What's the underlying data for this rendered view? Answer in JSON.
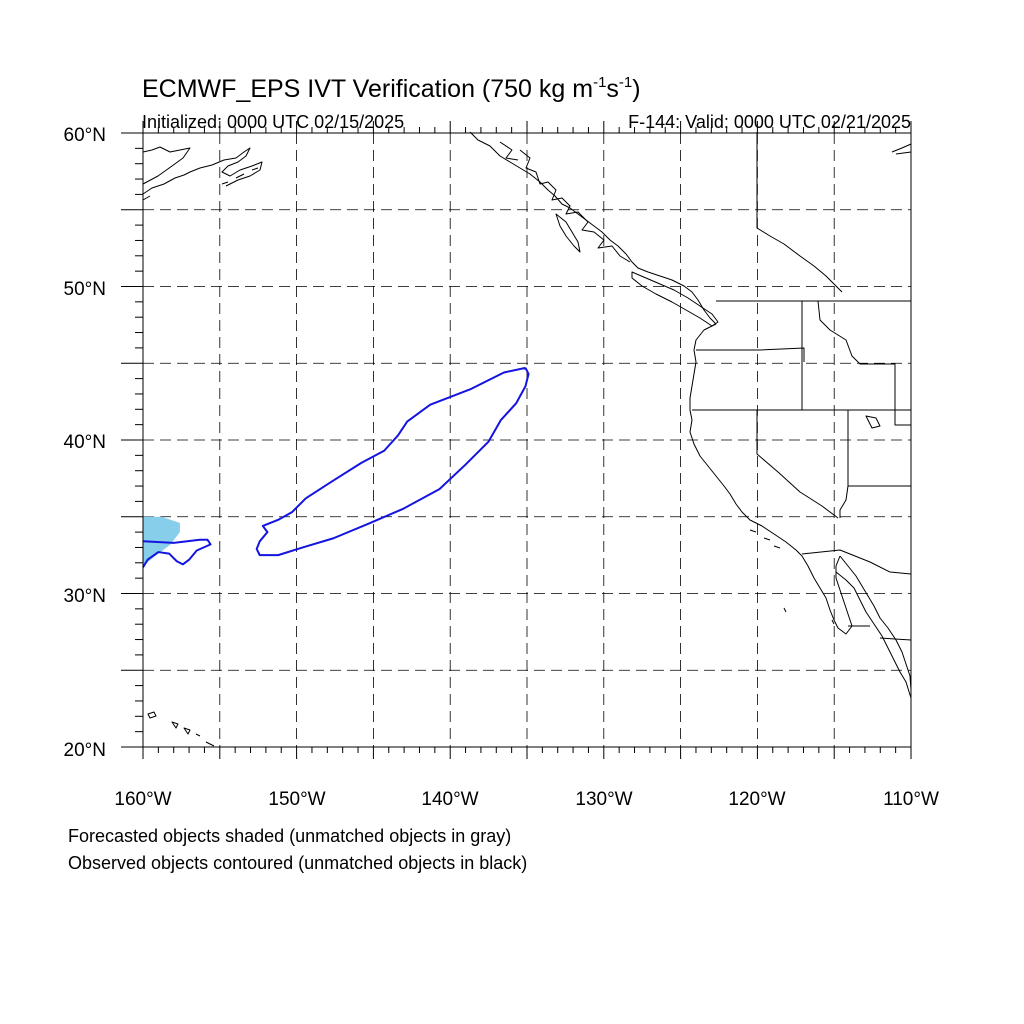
{
  "title": {
    "main_prefix": "ECMWF_EPS IVT Verification (750 kg m",
    "sup1": "-1",
    "mid": "s",
    "sup2": "-1",
    "suffix": ")"
  },
  "subtitle": {
    "left": "Initialized: 0000 UTC 02/15/2025",
    "right": "F-144: Valid: 0000 UTC 02/21/2025"
  },
  "axes": {
    "lon_labels": [
      "160°W",
      "150°W",
      "140°W",
      "130°W",
      "120°W",
      "110°W"
    ],
    "lat_labels": [
      "60°N",
      "50°N",
      "40°N",
      "30°N",
      "20°N"
    ],
    "lon_range": [
      -160,
      -110
    ],
    "lat_range": [
      20,
      60
    ],
    "grid_spacing_deg": 5,
    "grid": "dashed"
  },
  "footnotes": {
    "line1": "Forecasted objects shaded (unmatched objects in gray)",
    "line2": "Observed objects contoured (unmatched objects in black)"
  },
  "colors": {
    "forecast_fill": "#87ceeb",
    "observed_contour": "#1414e0",
    "land_lines": "#000000"
  },
  "map_data": {
    "forecast_objects": [
      {
        "name": "forecast-object-1",
        "color": "#87ceeb",
        "points": [
          [
            -160,
            35
          ],
          [
            -158.8,
            35
          ],
          [
            -157.6,
            34.6
          ],
          [
            -157.6,
            34
          ],
          [
            -158.2,
            33.2
          ],
          [
            -159,
            32.6
          ],
          [
            -160,
            31.8
          ]
        ]
      }
    ],
    "observed_objects": [
      {
        "name": "observed-object-1",
        "color": "#1414e0",
        "points": [
          [
            -135.1,
            44.7
          ],
          [
            -136.5,
            44.4
          ],
          [
            -138.7,
            43.3
          ],
          [
            -141.3,
            42.3
          ],
          [
            -142.8,
            41.2
          ],
          [
            -143.4,
            40.3
          ],
          [
            -144.3,
            39.3
          ],
          [
            -145.8,
            38.5
          ],
          [
            -147.7,
            37.3
          ],
          [
            -149.4,
            36.2
          ],
          [
            -150.3,
            35.3
          ],
          [
            -151.2,
            34.8
          ],
          [
            -152.2,
            34.4
          ],
          [
            -151.9,
            34
          ],
          [
            -152.4,
            33.4
          ],
          [
            -152.6,
            32.9
          ],
          [
            -152.4,
            32.5
          ],
          [
            -151.2,
            32.5
          ],
          [
            -149.6,
            33
          ],
          [
            -147.6,
            33.6
          ],
          [
            -145.2,
            34.6
          ],
          [
            -143.1,
            35.5
          ],
          [
            -140.7,
            36.8
          ],
          [
            -139,
            38.4
          ],
          [
            -137.5,
            39.9
          ],
          [
            -136.7,
            41.3
          ],
          [
            -135.7,
            42.4
          ],
          [
            -135.1,
            43.5
          ],
          [
            -134.9,
            44.3
          ],
          [
            -135.1,
            44.7
          ]
        ]
      },
      {
        "name": "observed-object-2",
        "color": "#1414e0",
        "points": [
          [
            -160,
            33.4
          ],
          [
            -158,
            33.3
          ],
          [
            -156.3,
            33.5
          ],
          [
            -155.8,
            33.5
          ],
          [
            -155.6,
            33.2
          ],
          [
            -156.5,
            32.8
          ],
          [
            -157,
            32.2
          ],
          [
            -157.4,
            31.9
          ],
          [
            -157.8,
            32.1
          ],
          [
            -158.3,
            32.6
          ],
          [
            -159,
            32.7
          ],
          [
            -159.7,
            32.2
          ],
          [
            -160,
            31.7
          ]
        ]
      }
    ]
  }
}
